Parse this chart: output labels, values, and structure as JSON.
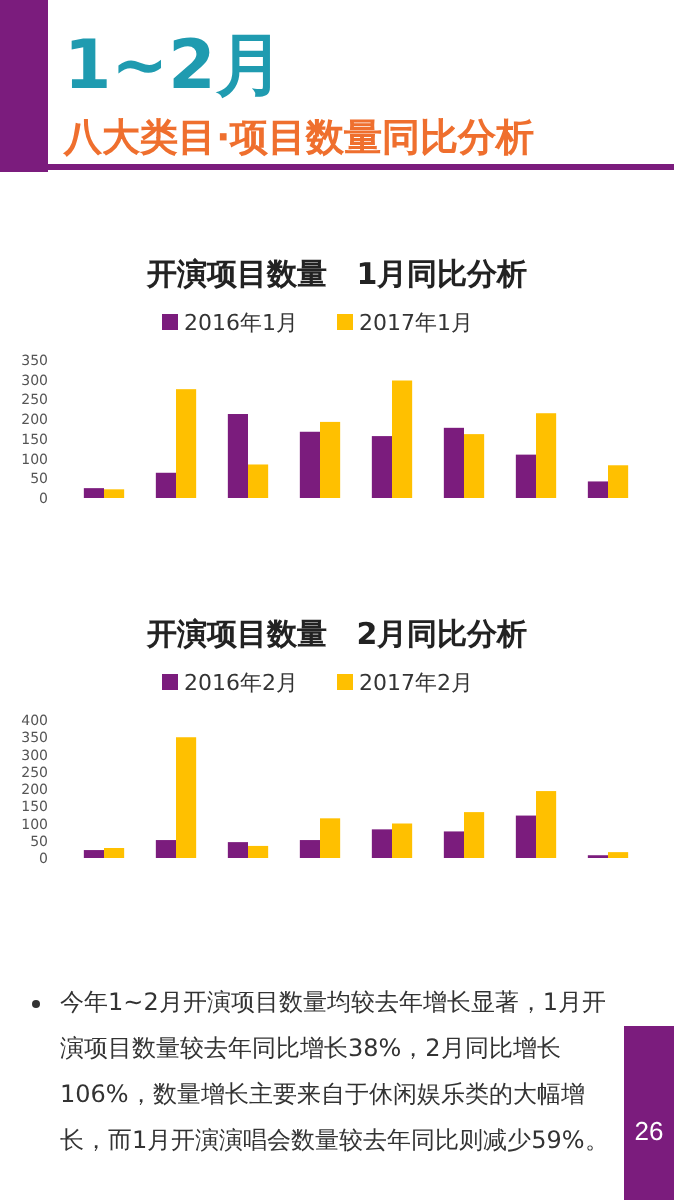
{
  "chart_data": [
    {
      "type": "other",
      "title": "1~2月",
      "subtitle": "八大类目·项目数量同比分析"
    },
    {
      "type": "bar",
      "title": "开演项目数量　1月同比分析",
      "categories": [
        null,
        null,
        null,
        null,
        null,
        null,
        null,
        null
      ],
      "series": [
        {
          "name": "2016年1月",
          "color": "#7b1c7d",
          "values": [
            25,
            64,
            213,
            168,
            157,
            178,
            110,
            42
          ]
        },
        {
          "name": "2017年1月",
          "color": "#ffc000",
          "values": [
            22,
            276,
            85,
            193,
            298,
            162,
            215,
            83
          ]
        }
      ],
      "ylim": [
        0,
        350
      ],
      "yticks": [
        0,
        50,
        100,
        150,
        200,
        250,
        300,
        350
      ],
      "legend": "top",
      "tick_labels": "y"
    },
    {
      "type": "bar",
      "title": "开演项目数量　2月同比分析",
      "categories": [
        null,
        null,
        null,
        null,
        null,
        null,
        null,
        null
      ],
      "series": [
        {
          "name": "2016年2月",
          "color": "#7b1c7d",
          "values": [
            23,
            52,
            46,
            52,
            83,
            77,
            123,
            8
          ]
        },
        {
          "name": "2017年2月",
          "color": "#ffc000",
          "values": [
            29,
            350,
            35,
            115,
            100,
            133,
            194,
            17
          ]
        }
      ],
      "ylim": [
        0,
        400
      ],
      "yticks": [
        0,
        50,
        100,
        150,
        200,
        250,
        300,
        350,
        400
      ],
      "legend": "top",
      "tick_labels": "y"
    },
    {
      "type": "other",
      "annotations": [
        "今年1~2月开演项目数量均较去年增长显著，1月开演项目数量较去年同比增长38%，2月同比增长106%，数量增长主要来自于休闲娱乐类的大幅增长，而1月开演演唱会数量较去年同比则减少59%。",
        "26"
      ]
    }
  ]
}
